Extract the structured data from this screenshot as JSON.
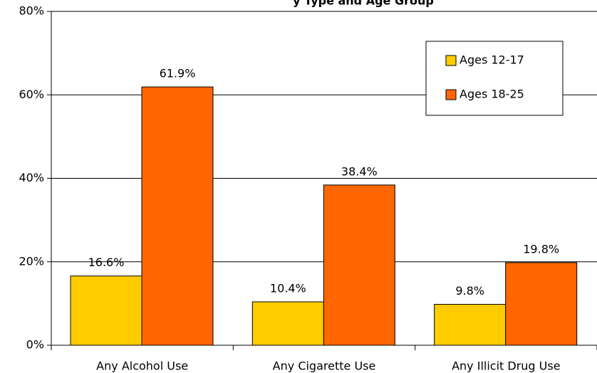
{
  "chart_data": {
    "type": "bar",
    "title": "y Type and Age Group",
    "categories": [
      "Any Alcohol Use",
      "Any Cigarette Use",
      "Any Illicit Drug Use"
    ],
    "series": [
      {
        "name": "Ages 12-17",
        "color": "#ffcc00",
        "values": [
          16.6,
          10.4,
          9.8
        ],
        "value_labels": [
          "16.6%",
          "10.4%",
          "9.8%"
        ]
      },
      {
        "name": "Ages 18-25",
        "color": "#ff6600",
        "values": [
          61.9,
          38.4,
          19.8
        ],
        "value_labels": [
          "61.9%",
          "38.4%",
          "19.8%"
        ]
      }
    ],
    "ylim": [
      0,
      80
    ],
    "yticks": [
      {
        "value": 0,
        "label": "0%"
      },
      {
        "value": 20,
        "label": "20%"
      },
      {
        "value": 40,
        "label": "40%"
      },
      {
        "value": 60,
        "label": "60%"
      },
      {
        "value": 80,
        "label": "80%"
      }
    ],
    "grid": true,
    "legend": "upper right"
  }
}
